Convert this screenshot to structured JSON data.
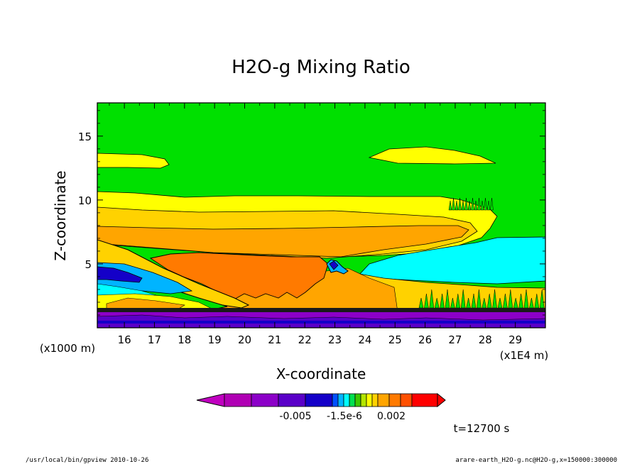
{
  "chart_data": {
    "type": "heatmap",
    "title": "H2O-g Mixing Ratio",
    "xlabel": "X-coordinate",
    "ylabel": "Z-coordinate",
    "x_scale_note": "(x1E4 m)",
    "y_scale_note": "(x1000 m)",
    "xlim": [
      15.1,
      30.0
    ],
    "ylim": [
      0,
      17.6
    ],
    "x_ticks": [
      "16",
      "17",
      "18",
      "19",
      "20",
      "21",
      "22",
      "23",
      "24",
      "25",
      "26",
      "27",
      "28",
      "29"
    ],
    "y_ticks": [
      "5",
      "10",
      "15"
    ],
    "grid": false,
    "legend": "colorbar-bottom",
    "colorbar": {
      "tick_labels": [
        "-0.005",
        "-1.5e-6",
        "0.002"
      ],
      "colors": [
        "#c000c0",
        "#b000b4",
        "#8c00c8",
        "#5a00c8",
        "#1400c8",
        "#0050ff",
        "#00b4ff",
        "#00ffff",
        "#00e050",
        "#3cc800",
        "#b4e600",
        "#ffff00",
        "#ffd200",
        "#ffa500",
        "#ff7a00",
        "#ff5000",
        "#ff0000"
      ]
    },
    "regions": [
      {
        "name": "background",
        "color": "#00e000",
        "x": [
          15.1,
          30.0
        ],
        "z": [
          0,
          17.6
        ]
      },
      {
        "name": "upper-yellow-left",
        "color": "#ffff00",
        "x": [
          15.1,
          17.4
        ],
        "z": [
          12.5,
          13.8
        ]
      },
      {
        "name": "upper-yellow-right",
        "color": "#ffff00",
        "x": [
          24.2,
          28.5
        ],
        "z": [
          12.8,
          14.0
        ]
      },
      {
        "name": "anvil-yellow",
        "color": "#ffff00",
        "x": [
          15.1,
          28.5
        ],
        "z": [
          7.0,
          10.8
        ]
      },
      {
        "name": "anvil-gold",
        "color": "#ffd200",
        "x": [
          15.1,
          27.1
        ],
        "z": [
          6.0,
          9.4
        ]
      },
      {
        "name": "anvil-orange",
        "color": "#ffa500",
        "x": [
          15.1,
          27.0
        ],
        "z": [
          6.2,
          8.1
        ]
      },
      {
        "name": "core-dark-orange",
        "color": "#ff7a00",
        "x": [
          18.0,
          23.6
        ],
        "z": [
          2.3,
          5.9
        ]
      },
      {
        "name": "right-cyan-layer",
        "color": "#00ffff",
        "x": [
          23.5,
          30.0
        ],
        "z": [
          3.6,
          6.2
        ]
      },
      {
        "name": "left-blue-layer",
        "color": "#1400c8",
        "x": [
          15.1,
          17.2
        ],
        "z": [
          3.6,
          4.9
        ]
      },
      {
        "name": "surface-purple",
        "color": "#8c00c8",
        "x": [
          15.1,
          30.0
        ],
        "z": [
          0,
          1.6
        ]
      }
    ]
  },
  "footer": {
    "left": "/usr/local/bin/gpview   2010-10-26",
    "right": "arare-earth_H2O-g.nc@H2O-g,x=150000:300000",
    "time": "t=12700 s"
  }
}
